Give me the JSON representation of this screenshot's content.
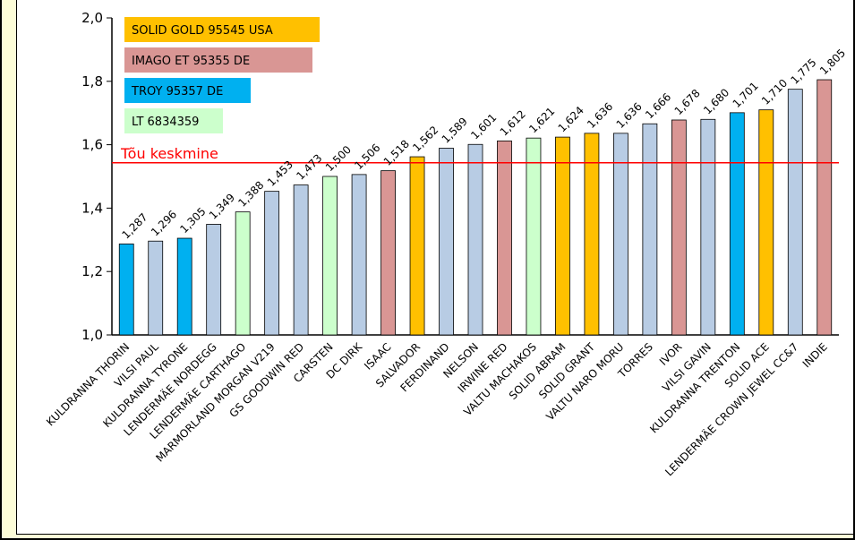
{
  "chart_data": {
    "type": "bar",
    "title": "",
    "xlabel": "",
    "ylabel": "",
    "ylim": [
      1.0,
      2.0
    ],
    "yticks": [
      "1,0",
      "1,2",
      "1,4",
      "1,6",
      "1,8",
      "2,0"
    ],
    "ytick_values": [
      1.0,
      1.2,
      1.4,
      1.6,
      1.8,
      2.0
    ],
    "grid": false,
    "legend_position": "top-left",
    "legend": [
      {
        "label": "SOLID GOLD 95545 USA",
        "color": "#ffc000",
        "group": "gold"
      },
      {
        "label": "IMAGO ET 95355 DE",
        "color": "#d99694",
        "group": "imago"
      },
      {
        "label": "TROY 95357 DE",
        "color": "#00b0f0",
        "group": "troy"
      },
      {
        "label": "LT 6834359",
        "color": "#ccffcc",
        "group": "lt"
      }
    ],
    "default_color": "#b8cce4",
    "reference_line": {
      "label": "Tõu keskmine",
      "value": 1.543,
      "color": "#ff0000"
    },
    "categories": [
      "KULDRANNA THORIN",
      "VILSI PAUL",
      "KULDRANNA TYRONE",
      "LENDERMÄE NORDEGG",
      "LENDERMÄE CARTHAGO",
      "MARMORLAND MORGAN V219",
      "GS GOODWIN RED",
      "CARSTEN",
      "DC DIRK",
      "ISAAC",
      "SALVADOR",
      "FERDINAND",
      "NELSON",
      "IRWINE RED",
      "VALTU MACHAKOS",
      "SOLID ABRAM",
      "SOLID GRANT",
      "VALTU NARO MORU",
      "TORRES",
      "IVOR",
      "VILSI GAVIN",
      "KULDRANNA TRENTON",
      "SOLID ACE",
      "LENDERMÄE CROWN JEWEL CC&7",
      "INDIE"
    ],
    "values": [
      1.287,
      1.296,
      1.305,
      1.349,
      1.388,
      1.453,
      1.473,
      1.5,
      1.506,
      1.518,
      1.562,
      1.589,
      1.601,
      1.612,
      1.621,
      1.624,
      1.636,
      1.636,
      1.666,
      1.678,
      1.68,
      1.701,
      1.71,
      1.775,
      1.805
    ],
    "value_labels": [
      "1,287",
      "1,296",
      "1,305",
      "1,349",
      "1,388",
      "1,453",
      "1,473",
      "1,500",
      "1,506",
      "1,518",
      "1,562",
      "1,589",
      "1,601",
      "1,612",
      "1,621",
      "1,624",
      "1,636",
      "1,636",
      "1,666",
      "1,678",
      "1,680",
      "1,701",
      "1,710",
      "1,775",
      "1,805"
    ],
    "bar_colors": [
      "#00b0f0",
      "#b8cce4",
      "#00b0f0",
      "#b8cce4",
      "#ccffcc",
      "#b8cce4",
      "#b8cce4",
      "#ccffcc",
      "#b8cce4",
      "#d99694",
      "#ffc000",
      "#b8cce4",
      "#b8cce4",
      "#d99694",
      "#ccffcc",
      "#ffc000",
      "#ffc000",
      "#b8cce4",
      "#b8cce4",
      "#d99694",
      "#b8cce4",
      "#00b0f0",
      "#ffc000",
      "#b8cce4",
      "#d99694"
    ]
  }
}
